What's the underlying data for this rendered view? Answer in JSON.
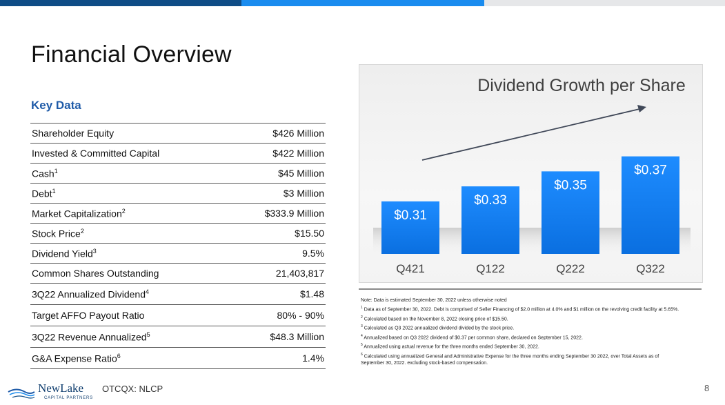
{
  "colors": {
    "bar1": "#0f4c86",
    "bar2": "#1a8cef",
    "bar3": "#e6e7e9",
    "heading": "#1f5ba8",
    "bars": "#0a78f0"
  },
  "page": {
    "title": "Financial Overview",
    "page_number": "8",
    "ticker": "OTCQX: NLCP"
  },
  "logo": {
    "name": "NewLake",
    "tagline": "CAPITAL PARTNERS"
  },
  "key_data": {
    "heading": "Key Data",
    "rows": [
      {
        "label": "Shareholder Equity",
        "sup": "",
        "value": "$426 Million"
      },
      {
        "label": "Invested & Committed Capital",
        "sup": "",
        "value": "$422 Million"
      },
      {
        "label": "Cash",
        "sup": "1",
        "value": "$45 Million"
      },
      {
        "label": "Debt",
        "sup": "1",
        "value": "$3 Million"
      },
      {
        "label": "Market Capitalization",
        "sup": "2",
        "value": "$333.9 Million"
      },
      {
        "label": "Stock Price",
        "sup": "2",
        "value": "$15.50"
      },
      {
        "label": "Dividend Yield",
        "sup": "3",
        "value": "9.5%"
      },
      {
        "label": "Common Shares Outstanding",
        "sup": "",
        "value": "21,403,817"
      },
      {
        "label": "3Q22 Annualized Dividend",
        "sup": "4",
        "value": "$1.48"
      },
      {
        "label": "Target AFFO Payout Ratio",
        "sup": "",
        "value": "80% - 90%"
      },
      {
        "label": "3Q22 Revenue Annualized",
        "sup": "5",
        "value": "$48.3 Million"
      },
      {
        "label": "G&A Expense Ratio",
        "sup": "6",
        "value": "1.4%"
      }
    ]
  },
  "chart_data": {
    "type": "bar",
    "title": "Dividend Growth per Share",
    "categories": [
      "Q421",
      "Q122",
      "Q222",
      "Q322"
    ],
    "values": [
      0.31,
      0.33,
      0.35,
      0.37
    ],
    "value_labels": [
      "$0.31",
      "$0.33",
      "$0.35",
      "$0.37"
    ],
    "ylim": [
      0.24,
      0.4
    ],
    "trend_arrow": true
  },
  "notes": [
    {
      "sup": "",
      "text": "Note: Data is estimated September 30, 2022 unless otherwise noted"
    },
    {
      "sup": "1",
      "text": " Data as of September 30, 2022. Debt is comprised of Seller Financing of $2.0 million at 4.0% and $1 million on the revolving credit facility at 5.65%."
    },
    {
      "sup": "2",
      "text": " Calculated based on the November 8, 2022 closing price of $15.50."
    },
    {
      "sup": "3",
      "text": " Calculated as Q3 2022 annualized dividend divided by the stock price."
    },
    {
      "sup": "4",
      "text": " Annualized based on Q3 2022 dividend of $0.37 per common share, declared on September 15, 2022."
    },
    {
      "sup": "5",
      "text": " Annualized using actual revenue for the three months ended September 30, 2022."
    },
    {
      "sup": "6",
      "text": " Calculated using annualized General and Administrative Expense for the three months ending September 30 2022, over Total Assets as of"
    },
    {
      "sup": "",
      "text": "September 30, 2022. excluding stock-based compensation."
    }
  ]
}
